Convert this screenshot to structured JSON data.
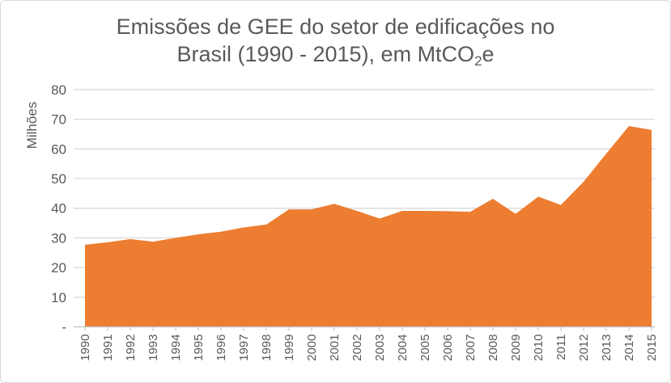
{
  "chart_data": {
    "type": "area",
    "title_line1": "Emissões de GEE do setor de edificações no",
    "title_line2_pre": "Brasil (1990 - 2015), em MtCO",
    "title_line2_sub": "2",
    "title_line2_post": "e",
    "xlabel": "",
    "ylabel": "Milhões",
    "ylim": [
      0,
      80
    ],
    "y_ticks": [
      0,
      10,
      20,
      30,
      40,
      50,
      60,
      70,
      80
    ],
    "y_tick_labels": [
      "-",
      "10",
      "20",
      "30",
      "40",
      "50",
      "60",
      "70",
      "80"
    ],
    "grid": true,
    "categories": [
      "1990",
      "1991",
      "1992",
      "1993",
      "1994",
      "1995",
      "1996",
      "1997",
      "1998",
      "1999",
      "2000",
      "2001",
      "2002",
      "2003",
      "2004",
      "2005",
      "2006",
      "2007",
      "2008",
      "2009",
      "2010",
      "2011",
      "2012",
      "2013",
      "2014",
      "2015"
    ],
    "values": [
      27.7,
      28.5,
      29.6,
      28.7,
      30.0,
      31.2,
      32.1,
      33.5,
      34.5,
      39.6,
      39.6,
      41.5,
      39.1,
      36.5,
      39.1,
      39.1,
      39.0,
      38.8,
      43.2,
      38.1,
      43.9,
      41.1,
      48.9,
      58.4,
      67.7,
      66.4
    ],
    "color": "#ED7D31"
  }
}
